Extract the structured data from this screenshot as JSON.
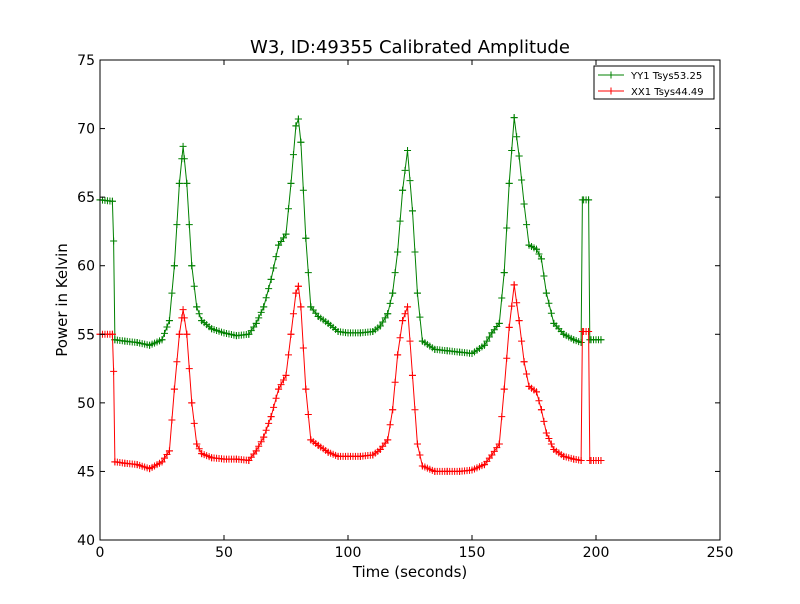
{
  "chart_data": {
    "type": "line",
    "title": "W3, ID:49355 Calibrated Amplitude",
    "xlabel": "Time (seconds)",
    "ylabel": "Power in Kelvin",
    "xlim": [
      0,
      250
    ],
    "ylim": [
      40,
      75
    ],
    "xticks": [
      "0",
      "50",
      "100",
      "150",
      "200",
      "250"
    ],
    "yticks": [
      "40",
      "45",
      "50",
      "55",
      "60",
      "65",
      "70",
      "75"
    ],
    "grid": false,
    "legend_position": "top-right",
    "marker": "+",
    "series": [
      {
        "name": "YY1 Tsys53.25",
        "color": "#008000",
        "points": [
          [
            0,
            64.8
          ],
          [
            5,
            64.7
          ],
          [
            5.5,
            61.8
          ],
          [
            6,
            54.6
          ],
          [
            10,
            54.5
          ],
          [
            15,
            54.4
          ],
          [
            20,
            54.2
          ],
          [
            25,
            54.6
          ],
          [
            28,
            56.0
          ],
          [
            30,
            60.0
          ],
          [
            32,
            66.0
          ],
          [
            33.5,
            68.7
          ],
          [
            35,
            66.0
          ],
          [
            37,
            60.0
          ],
          [
            39,
            57.0
          ],
          [
            41,
            56.0
          ],
          [
            45,
            55.4
          ],
          [
            50,
            55.1
          ],
          [
            55,
            54.9
          ],
          [
            60,
            55.0
          ],
          [
            63,
            55.8
          ],
          [
            66,
            57.0
          ],
          [
            69,
            59.0
          ],
          [
            72,
            61.5
          ],
          [
            75,
            62.3
          ],
          [
            77,
            66.0
          ],
          [
            79,
            70.2
          ],
          [
            80,
            70.7
          ],
          [
            81,
            69.0
          ],
          [
            83,
            62.0
          ],
          [
            85,
            57.0
          ],
          [
            88,
            56.3
          ],
          [
            92,
            55.8
          ],
          [
            96,
            55.2
          ],
          [
            100,
            55.1
          ],
          [
            105,
            55.1
          ],
          [
            110,
            55.2
          ],
          [
            113,
            55.6
          ],
          [
            116,
            56.5
          ],
          [
            118,
            58.0
          ],
          [
            120,
            61.0
          ],
          [
            122,
            65.5
          ],
          [
            124,
            68.4
          ],
          [
            126,
            64.0
          ],
          [
            128,
            58.0
          ],
          [
            130,
            54.5
          ],
          [
            135,
            53.9
          ],
          [
            140,
            53.8
          ],
          [
            145,
            53.7
          ],
          [
            150,
            53.6
          ],
          [
            155,
            54.2
          ],
          [
            158,
            55.1
          ],
          [
            161,
            55.8
          ],
          [
            163,
            59.5
          ],
          [
            165,
            66.0
          ],
          [
            167,
            70.8
          ],
          [
            169,
            68.0
          ],
          [
            171,
            64.5
          ],
          [
            173,
            61.5
          ],
          [
            176,
            61.2
          ],
          [
            178,
            60.5
          ],
          [
            180,
            58.0
          ],
          [
            183,
            55.8
          ],
          [
            187,
            55.0
          ],
          [
            191,
            54.6
          ],
          [
            194,
            54.4
          ],
          [
            194.5,
            64.8
          ],
          [
            197,
            64.8
          ],
          [
            197.5,
            54.6
          ],
          [
            202,
            54.6
          ]
        ]
      },
      {
        "name": "XX1 Tsys44.49",
        "color": "#ff0000",
        "points": [
          [
            0,
            55.0
          ],
          [
            5,
            55.0
          ],
          [
            5.5,
            52.3
          ],
          [
            6,
            45.7
          ],
          [
            10,
            45.6
          ],
          [
            15,
            45.5
          ],
          [
            20,
            45.2
          ],
          [
            25,
            45.7
          ],
          [
            28,
            46.5
          ],
          [
            30,
            51.0
          ],
          [
            32,
            55.0
          ],
          [
            33.5,
            56.8
          ],
          [
            35,
            55.0
          ],
          [
            37,
            50.0
          ],
          [
            39,
            47.0
          ],
          [
            41,
            46.3
          ],
          [
            45,
            46.0
          ],
          [
            50,
            45.9
          ],
          [
            55,
            45.9
          ],
          [
            60,
            45.8
          ],
          [
            63,
            46.5
          ],
          [
            66,
            47.5
          ],
          [
            69,
            49.0
          ],
          [
            72,
            51.0
          ],
          [
            75,
            52.0
          ],
          [
            77,
            55.0
          ],
          [
            79,
            58.0
          ],
          [
            80,
            58.5
          ],
          [
            81,
            57.0
          ],
          [
            83,
            51.0
          ],
          [
            85,
            47.3
          ],
          [
            88,
            46.9
          ],
          [
            92,
            46.4
          ],
          [
            96,
            46.1
          ],
          [
            100,
            46.1
          ],
          [
            105,
            46.1
          ],
          [
            110,
            46.2
          ],
          [
            113,
            46.6
          ],
          [
            116,
            47.3
          ],
          [
            118,
            49.5
          ],
          [
            120,
            53.5
          ],
          [
            122,
            56.0
          ],
          [
            124,
            57.0
          ],
          [
            126,
            52.0
          ],
          [
            128,
            47.0
          ],
          [
            130,
            45.4
          ],
          [
            135,
            45.0
          ],
          [
            140,
            45.0
          ],
          [
            145,
            45.0
          ],
          [
            150,
            45.1
          ],
          [
            155,
            45.5
          ],
          [
            158,
            46.2
          ],
          [
            161,
            47.0
          ],
          [
            163,
            51.0
          ],
          [
            165,
            55.5
          ],
          [
            167,
            58.6
          ],
          [
            169,
            56.0
          ],
          [
            171,
            53.0
          ],
          [
            173,
            51.2
          ],
          [
            176,
            50.8
          ],
          [
            178,
            49.5
          ],
          [
            180,
            47.8
          ],
          [
            183,
            46.6
          ],
          [
            187,
            46.1
          ],
          [
            191,
            45.9
          ],
          [
            194,
            45.8
          ],
          [
            194.5,
            55.2
          ],
          [
            197,
            55.2
          ],
          [
            197.5,
            45.8
          ],
          [
            202,
            45.8
          ]
        ]
      }
    ]
  }
}
